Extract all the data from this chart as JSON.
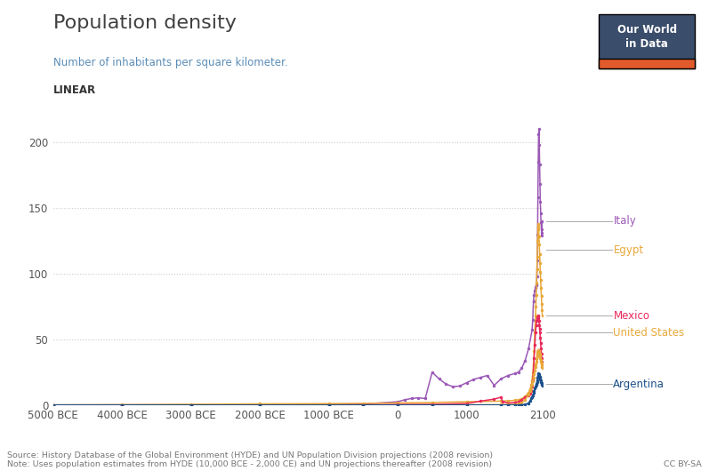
{
  "title": "Population density",
  "subtitle": "Number of inhabitants per square kilometer.",
  "scale_label": "LINEAR",
  "ylim": [
    0,
    215
  ],
  "yticks": [
    0,
    50,
    100,
    150,
    200
  ],
  "source_text": "Source: History Database of the Global Environment (HYDE) and UN Population Division projections (2008 revision)\nNote: Uses population estimates from HYDE (10,000 BCE - 2,000 CE) and UN projections thereafter (2008 revision)",
  "cc_text": "CC BY-SA",
  "logo_text": "Our World\nin Data",
  "logo_bg": "#3a4d6b",
  "logo_accent": "#e05a2b",
  "series": {
    "Italy": {
      "color": "#9b59b6",
      "data": [
        [
          -5000,
          0.1
        ],
        [
          -4000,
          0.15
        ],
        [
          -3000,
          0.2
        ],
        [
          -2000,
          0.3
        ],
        [
          -1000,
          0.5
        ],
        [
          -500,
          0.8
        ],
        [
          0,
          2.5
        ],
        [
          100,
          4.0
        ],
        [
          200,
          5.0
        ],
        [
          300,
          5.5
        ],
        [
          400,
          5.0
        ],
        [
          500,
          25.0
        ],
        [
          600,
          20.0
        ],
        [
          700,
          16.0
        ],
        [
          800,
          14.0
        ],
        [
          900,
          14.5
        ],
        [
          1000,
          17.0
        ],
        [
          1100,
          19.5
        ],
        [
          1200,
          21.0
        ],
        [
          1300,
          22.5
        ],
        [
          1400,
          15.0
        ],
        [
          1500,
          20.0
        ],
        [
          1600,
          22.5
        ],
        [
          1700,
          24.0
        ],
        [
          1750,
          25.0
        ],
        [
          1800,
          28.0
        ],
        [
          1850,
          34.0
        ],
        [
          1900,
          43.0
        ],
        [
          1950,
          57.0
        ],
        [
          1960,
          65.0
        ],
        [
          1970,
          79.0
        ],
        [
          1980,
          84.0
        ],
        [
          1990,
          87.0
        ],
        [
          2000,
          89.0
        ],
        [
          2005,
          90.0
        ],
        [
          2010,
          91.0
        ],
        [
          2015,
          92.0
        ],
        [
          2020,
          98.0
        ],
        [
          2025,
          110.0
        ],
        [
          2030,
          130.0
        ],
        [
          2035,
          158.0
        ],
        [
          2040,
          185.0
        ],
        [
          2045,
          206.0
        ],
        [
          2050,
          210.0
        ],
        [
          2055,
          198.0
        ],
        [
          2060,
          183.0
        ],
        [
          2065,
          168.0
        ],
        [
          2070,
          155.0
        ],
        [
          2075,
          146.0
        ],
        [
          2080,
          139.0
        ],
        [
          2085,
          134.0
        ],
        [
          2090,
          131.0
        ],
        [
          2095,
          129.0
        ],
        [
          2100,
          140.0
        ]
      ]
    },
    "Egypt": {
      "color": "#e8a838",
      "data": [
        [
          -5000,
          0.1
        ],
        [
          -4000,
          0.3
        ],
        [
          -3000,
          0.6
        ],
        [
          -2000,
          0.9
        ],
        [
          -1000,
          1.1
        ],
        [
          -500,
          1.3
        ],
        [
          0,
          1.6
        ],
        [
          500,
          2.0
        ],
        [
          1000,
          2.5
        ],
        [
          1500,
          3.0
        ],
        [
          1600,
          3.2
        ],
        [
          1700,
          3.6
        ],
        [
          1750,
          4.0
        ],
        [
          1800,
          4.8
        ],
        [
          1850,
          6.5
        ],
        [
          1900,
          9.5
        ],
        [
          1920,
          12.0
        ],
        [
          1940,
          15.5
        ],
        [
          1950,
          19.0
        ],
        [
          1960,
          24.0
        ],
        [
          1970,
          31.0
        ],
        [
          1980,
          41.0
        ],
        [
          1990,
          55.0
        ],
        [
          2000,
          68.0
        ],
        [
          2005,
          75.0
        ],
        [
          2010,
          84.0
        ],
        [
          2015,
          93.0
        ],
        [
          2020,
          103.0
        ],
        [
          2025,
          113.0
        ],
        [
          2030,
          125.0
        ],
        [
          2035,
          136.0
        ],
        [
          2040,
          138.0
        ],
        [
          2045,
          134.0
        ],
        [
          2050,
          128.0
        ],
        [
          2055,
          122.0
        ],
        [
          2060,
          115.0
        ],
        [
          2065,
          108.0
        ],
        [
          2070,
          101.0
        ],
        [
          2075,
          95.0
        ],
        [
          2080,
          89.0
        ],
        [
          2085,
          83.0
        ],
        [
          2090,
          77.0
        ],
        [
          2095,
          72.0
        ],
        [
          2100,
          68.0
        ]
      ]
    },
    "Mexico": {
      "color": "#e8285a",
      "data": [
        [
          -5000,
          0.0
        ],
        [
          -4000,
          0.01
        ],
        [
          -3000,
          0.02
        ],
        [
          -2000,
          0.03
        ],
        [
          -1000,
          0.06
        ],
        [
          -500,
          0.12
        ],
        [
          0,
          0.4
        ],
        [
          500,
          0.6
        ],
        [
          1000,
          1.2
        ],
        [
          1200,
          3.0
        ],
        [
          1400,
          4.5
        ],
        [
          1500,
          6.0
        ],
        [
          1520,
          2.8
        ],
        [
          1600,
          1.5
        ],
        [
          1700,
          2.0
        ],
        [
          1750,
          2.5
        ],
        [
          1800,
          3.8
        ],
        [
          1850,
          6.0
        ],
        [
          1900,
          7.5
        ],
        [
          1920,
          8.5
        ],
        [
          1940,
          11.0
        ],
        [
          1950,
          14.0
        ],
        [
          1960,
          18.5
        ],
        [
          1970,
          26.0
        ],
        [
          1980,
          36.0
        ],
        [
          1990,
          46.0
        ],
        [
          2000,
          55.0
        ],
        [
          2010,
          61.0
        ],
        [
          2015,
          64.0
        ],
        [
          2020,
          65.0
        ],
        [
          2025,
          66.0
        ],
        [
          2030,
          67.0
        ],
        [
          2035,
          67.5
        ],
        [
          2040,
          68.0
        ],
        [
          2045,
          66.0
        ],
        [
          2050,
          64.0
        ],
        [
          2055,
          61.0
        ],
        [
          2060,
          58.0
        ],
        [
          2065,
          55.0
        ],
        [
          2070,
          51.0
        ],
        [
          2075,
          47.0
        ],
        [
          2080,
          43.0
        ],
        [
          2085,
          39.0
        ],
        [
          2090,
          36.0
        ],
        [
          2095,
          33.0
        ],
        [
          2100,
          31.0
        ]
      ]
    },
    "United States": {
      "color": "#e8a838",
      "data": [
        [
          -5000,
          0.0
        ],
        [
          -4000,
          0.01
        ],
        [
          -3000,
          0.01
        ],
        [
          -2000,
          0.02
        ],
        [
          -1000,
          0.03
        ],
        [
          -500,
          0.05
        ],
        [
          0,
          0.1
        ],
        [
          500,
          0.15
        ],
        [
          1000,
          0.2
        ],
        [
          1500,
          0.25
        ],
        [
          1600,
          0.3
        ],
        [
          1700,
          0.5
        ],
        [
          1750,
          0.9
        ],
        [
          1800,
          1.8
        ],
        [
          1850,
          4.0
        ],
        [
          1900,
          8.0
        ],
        [
          1920,
          10.5
        ],
        [
          1940,
          13.0
        ],
        [
          1950,
          15.5
        ],
        [
          1960,
          18.0
        ],
        [
          1970,
          21.0
        ],
        [
          1980,
          23.5
        ],
        [
          1990,
          26.0
        ],
        [
          2000,
          29.0
        ],
        [
          2005,
          31.0
        ],
        [
          2010,
          33.0
        ],
        [
          2015,
          35.0
        ],
        [
          2020,
          37.0
        ],
        [
          2025,
          39.0
        ],
        [
          2030,
          40.5
        ],
        [
          2035,
          41.5
        ],
        [
          2040,
          42.0
        ],
        [
          2045,
          41.5
        ],
        [
          2050,
          41.0
        ],
        [
          2055,
          40.0
        ],
        [
          2060,
          39.0
        ],
        [
          2065,
          37.5
        ],
        [
          2070,
          36.0
        ],
        [
          2075,
          34.5
        ],
        [
          2080,
          33.0
        ],
        [
          2085,
          31.5
        ],
        [
          2090,
          30.0
        ],
        [
          2095,
          29.0
        ],
        [
          2100,
          28.0
        ]
      ]
    },
    "Argentina": {
      "color": "#1a4f8a",
      "data": [
        [
          -5000,
          0.0
        ],
        [
          -4000,
          0.0
        ],
        [
          -3000,
          0.01
        ],
        [
          -2000,
          0.01
        ],
        [
          -1000,
          0.02
        ],
        [
          -500,
          0.02
        ],
        [
          0,
          0.03
        ],
        [
          500,
          0.03
        ],
        [
          1000,
          0.04
        ],
        [
          1500,
          0.05
        ],
        [
          1600,
          0.06
        ],
        [
          1700,
          0.1
        ],
        [
          1750,
          0.1
        ],
        [
          1800,
          0.2
        ],
        [
          1850,
          0.5
        ],
        [
          1900,
          1.5
        ],
        [
          1920,
          3.2
        ],
        [
          1940,
          5.0
        ],
        [
          1950,
          6.0
        ],
        [
          1960,
          7.5
        ],
        [
          1970,
          9.0
        ],
        [
          1980,
          10.5
        ],
        [
          1990,
          12.5
        ],
        [
          2000,
          14.0
        ],
        [
          2010,
          15.5
        ],
        [
          2015,
          16.0
        ],
        [
          2020,
          17.5
        ],
        [
          2025,
          19.0
        ],
        [
          2030,
          21.0
        ],
        [
          2035,
          22.5
        ],
        [
          2040,
          23.5
        ],
        [
          2045,
          24.0
        ],
        [
          2050,
          23.5
        ],
        [
          2055,
          22.5
        ],
        [
          2060,
          21.5
        ],
        [
          2065,
          20.5
        ],
        [
          2070,
          19.5
        ],
        [
          2075,
          18.5
        ],
        [
          2080,
          17.5
        ],
        [
          2085,
          16.5
        ],
        [
          2090,
          15.8
        ],
        [
          2095,
          15.2
        ],
        [
          2100,
          14.8
        ]
      ]
    }
  },
  "xticks": [
    -5000,
    -4000,
    -3000,
    -2000,
    -1000,
    0,
    1000,
    2100
  ],
  "xtick_labels": [
    "5000 BCE",
    "4000 BCE",
    "3000 BCE",
    "2000 BCE",
    "1000 BCE",
    "0",
    "1000",
    "2100"
  ],
  "label_annotations": [
    {
      "text": "Italy",
      "y_label": 140,
      "color": "#9b59b6"
    },
    {
      "text": "Egypt",
      "y_label": 118,
      "color": "#e8a838"
    },
    {
      "text": "Mexico",
      "y_label": 68,
      "color": "#e8285a"
    },
    {
      "text": "United States",
      "y_label": 55,
      "color": "#e8a838"
    },
    {
      "text": "Argentina",
      "y_label": 16,
      "color": "#1a4f8a"
    }
  ],
  "bg_color": "#ffffff",
  "grid_color": "#cccccc",
  "title_color": "#404040",
  "subtitle_color": "#5b8db8",
  "scale_color": "#333333"
}
